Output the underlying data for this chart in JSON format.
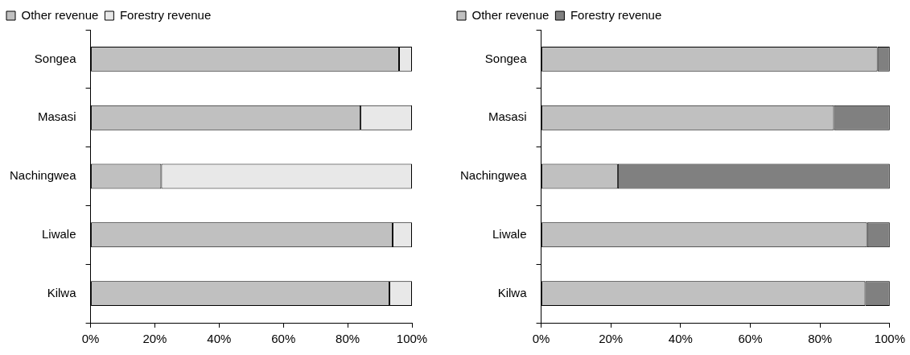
{
  "chart_data": [
    {
      "type": "bar",
      "orientation": "horizontal",
      "stacked": true,
      "categories": [
        "Songea",
        "Masasi",
        "Nachingwea",
        "Liwale",
        "Kilwa"
      ],
      "series": [
        {
          "name": "Other revenue",
          "color": "#c0c0c0",
          "values": [
            96,
            84,
            22,
            94,
            93
          ]
        },
        {
          "name": "Forestry revenue",
          "color": "#e8e8e8",
          "values": [
            4,
            16,
            78,
            6,
            7
          ]
        }
      ],
      "xlim": [
        0,
        100
      ],
      "xticks": [
        {
          "value": 0,
          "label": "0%"
        },
        {
          "value": 20,
          "label": "20%"
        },
        {
          "value": 40,
          "label": "40%"
        },
        {
          "value": 60,
          "label": "60%"
        },
        {
          "value": 80,
          "label": "80%"
        },
        {
          "value": 100,
          "label": "100%"
        }
      ],
      "grid": false,
      "legend": "top left"
    },
    {
      "type": "bar",
      "orientation": "horizontal",
      "stacked": true,
      "categories": [
        "Songea",
        "Masasi",
        "Nachingwea",
        "Liwale",
        "Kilwa"
      ],
      "series": [
        {
          "name": "Other revenue",
          "color": "#c0c0c0",
          "values": [
            96.5,
            84,
            22,
            93.5,
            93
          ]
        },
        {
          "name": "Forestry revenue",
          "color": "#808080",
          "values": [
            3.5,
            16,
            78,
            6.5,
            7
          ]
        }
      ],
      "xlim": [
        0,
        100
      ],
      "xticks": [
        {
          "value": 0,
          "label": "0%"
        },
        {
          "value": 20,
          "label": "20%"
        },
        {
          "value": 40,
          "label": "40%"
        },
        {
          "value": 60,
          "label": "60%"
        },
        {
          "value": 80,
          "label": "80%"
        },
        {
          "value": 100,
          "label": "100%"
        }
      ],
      "grid": false,
      "legend": "top left"
    }
  ]
}
